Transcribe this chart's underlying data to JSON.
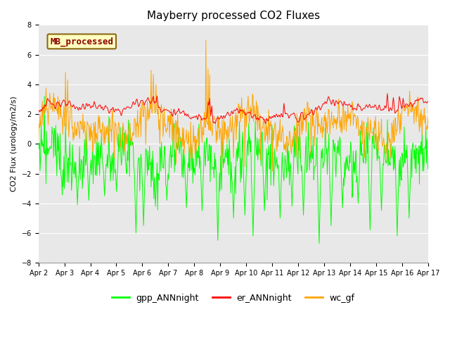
{
  "title": "Mayberry processed CO2 Fluxes",
  "ylabel": "CO2 Flux (urology/m2/s)",
  "ylim": [
    -8,
    8
  ],
  "yticks": [
    -8,
    -6,
    -4,
    -2,
    0,
    2,
    4,
    6,
    8
  ],
  "n_points": 720,
  "colors": {
    "gpp": "#00FF00",
    "er": "#FF0000",
    "wc": "#FFA500"
  },
  "legend_label": "MB_processed",
  "legend_box_color": "#FFFFC0",
  "legend_box_edge": "#8B6914",
  "legend_text_color": "#8B0000",
  "background_color": "#E8E8E8",
  "line_width": 0.7,
  "tick_labels": [
    "Apr 2",
    "Apr 3",
    "Apr 4",
    "Apr 5",
    "Apr 6",
    "Apr 7",
    "Apr 8",
    "Apr 9",
    "Apr 10",
    "Apr 11",
    "Apr 12",
    "Apr 13",
    "Apr 14",
    "Apr 15",
    "Apr 16",
    "Apr 17"
  ]
}
